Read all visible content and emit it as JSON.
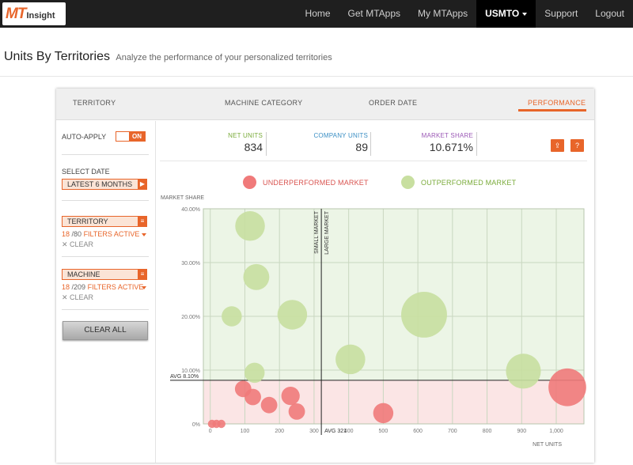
{
  "logo": {
    "brand_mt": "MT",
    "brand_rest": "Insight"
  },
  "nav": {
    "items": [
      {
        "label": "Home",
        "active": false
      },
      {
        "label": "Get MTApps",
        "active": false
      },
      {
        "label": "My MTApps",
        "active": false
      },
      {
        "label": "USMTO",
        "active": true
      },
      {
        "label": "Support",
        "active": false
      },
      {
        "label": "Logout",
        "active": false
      }
    ]
  },
  "page": {
    "title": "Units By Territories",
    "subtitle": "Analyze the performance of your personalized territories"
  },
  "tabs": [
    "TERRITORY",
    "MACHINE CATEGORY",
    "ORDER DATE",
    "PERFORMANCE"
  ],
  "sidebar": {
    "auto_apply": "AUTO-APPLY",
    "toggle": "ON",
    "select_date": "SELECT DATE",
    "date_value": "LATEST 6 MONTHS",
    "territory": {
      "label": "TERRITORY",
      "count": "18",
      "total": "/80",
      "active": "FILTERS ACTIVE",
      "clear": "✕ CLEAR"
    },
    "machine": {
      "label": "MACHINE",
      "count": "18",
      "total": "/209",
      "active": "FILTERS ACTIVE",
      "clear": "✕ CLEAR"
    },
    "clear_all": "CLEAR ALL"
  },
  "stats": [
    {
      "label": "NET UNITS",
      "value": "834",
      "color": "#7aab3a"
    },
    {
      "label": "COMPANY UNITS",
      "value": "89",
      "color": "#3b8fc4"
    },
    {
      "label": "MARKET SHARE",
      "value": "10.671%",
      "color": "#9b59b6"
    }
  ],
  "icons": {
    "export": "export-icon",
    "help": "?"
  },
  "legend": {
    "under": "UNDERPERFORMED MARKET",
    "out": "OUTPERFORMED MARKET",
    "under_color": "#f07a7a",
    "out_color": "#c8dfa0"
  },
  "chart_data": {
    "type": "scatter",
    "ylabel": "MARKET SHARE",
    "xlabel": "NET UNITS",
    "xlim": [
      -20,
      1080
    ],
    "ylim": [
      0,
      40
    ],
    "xticks": [
      "0",
      "100",
      "200",
      "300",
      "400",
      "500",
      "600",
      "700",
      "800",
      "900",
      "1,000"
    ],
    "yticks": [
      "0%",
      "10.00%",
      "20.00%",
      "30.00%",
      "40.00%"
    ],
    "avg_x_label": "AVG 321",
    "avg_y_label": "AVG 8.10%",
    "avg_x": 321,
    "avg_y": 8.1,
    "small_market": "SMALL MARKET",
    "large_market": "LARGE MARKET",
    "points": [
      {
        "x": 115,
        "y": 36.8,
        "units": 13,
        "group": "out"
      },
      {
        "x": 133,
        "y": 27.3,
        "units": 10,
        "group": "out"
      },
      {
        "x": 62,
        "y": 20.0,
        "units": 6,
        "group": "out"
      },
      {
        "x": 237,
        "y": 20.3,
        "units": 13,
        "group": "out"
      },
      {
        "x": 405,
        "y": 12.0,
        "units": 13,
        "group": "out"
      },
      {
        "x": 618,
        "y": 20.3,
        "units": 31,
        "group": "out"
      },
      {
        "x": 905,
        "y": 9.8,
        "units": 18,
        "group": "out"
      },
      {
        "x": 128,
        "y": 9.5,
        "units": 6,
        "group": "out"
      },
      {
        "x": 95,
        "y": 6.5,
        "units": 4,
        "group": "under"
      },
      {
        "x": 123,
        "y": 5.0,
        "units": 4,
        "group": "under"
      },
      {
        "x": 170,
        "y": 3.5,
        "units": 4,
        "group": "under"
      },
      {
        "x": 232,
        "y": 5.2,
        "units": 5,
        "group": "under"
      },
      {
        "x": 250,
        "y": 2.3,
        "units": 4,
        "group": "under"
      },
      {
        "x": 500,
        "y": 2.0,
        "units": 6,
        "group": "under"
      },
      {
        "x": 1032,
        "y": 6.8,
        "units": 21,
        "group": "under"
      },
      {
        "x": 5,
        "y": 0,
        "units": 1,
        "group": "under"
      },
      {
        "x": 18,
        "y": 0,
        "units": 1,
        "group": "under"
      },
      {
        "x": 32,
        "y": 0,
        "units": 1,
        "group": "under"
      }
    ]
  }
}
